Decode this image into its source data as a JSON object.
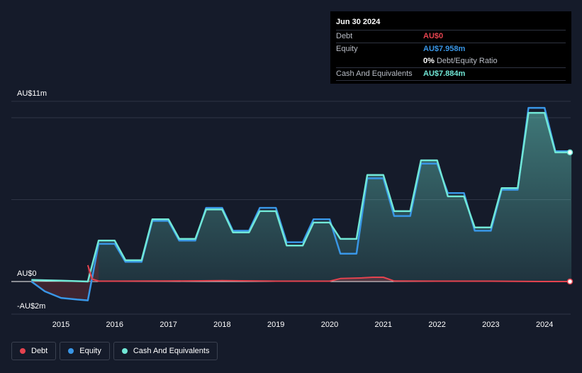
{
  "tooltip": {
    "date": "Jun 30 2024",
    "rows": {
      "debt": {
        "label": "Debt",
        "value": "AU$0"
      },
      "equity": {
        "label": "Equity",
        "value": "AU$7.958m"
      },
      "ratio": {
        "value": "0%",
        "label": "Debt/Equity Ratio"
      },
      "cash": {
        "label": "Cash And Equivalents",
        "value": "AU$7.884m"
      }
    }
  },
  "legend": {
    "debt": "Debt",
    "equity": "Equity",
    "cash": "Cash And Equivalents"
  },
  "colors": {
    "debt": "#e5434f",
    "equity": "#3996e6",
    "cash": "#71e7d6",
    "background": "#151b2a"
  },
  "chart_data": {
    "type": "line",
    "title": "",
    "xlabel": "",
    "ylabel": "",
    "y_tick_labels": [
      "AU$11m",
      "AU$0",
      "-AU$2m"
    ],
    "y_ticks": [
      11,
      0,
      -2
    ],
    "x_tick_labels": [
      "2015",
      "2016",
      "2017",
      "2018",
      "2019",
      "2020",
      "2021",
      "2022",
      "2023",
      "2024"
    ],
    "x_ticks": [
      2015,
      2016,
      2017,
      2018,
      2019,
      2020,
      2021,
      2022,
      2023,
      2024
    ],
    "xlim": [
      2014.1,
      2024.5
    ],
    "ylim": [
      -2,
      11
    ],
    "grid": true,
    "legend_position": "bottom-left",
    "series": [
      {
        "name": "Debt",
        "points": [
          [
            2015.5,
            1.0
          ],
          [
            2015.58,
            0.15
          ],
          [
            2015.7,
            0.02
          ],
          [
            2016.0,
            0.02
          ],
          [
            2017.0,
            0.03
          ],
          [
            2018.0,
            0.05
          ],
          [
            2019.0,
            0.02
          ],
          [
            2020.0,
            0.02
          ],
          [
            2020.2,
            0.18
          ],
          [
            2020.6,
            0.22
          ],
          [
            2020.8,
            0.26
          ],
          [
            2021.0,
            0.26
          ],
          [
            2021.2,
            0.03
          ],
          [
            2022.0,
            0.02
          ],
          [
            2023.0,
            0.02
          ],
          [
            2024.0,
            0.0
          ],
          [
            2024.5,
            0.0
          ]
        ]
      },
      {
        "name": "Equity",
        "points": [
          [
            2014.45,
            0.0
          ],
          [
            2014.7,
            -0.6
          ],
          [
            2015.0,
            -1.0
          ],
          [
            2015.3,
            -1.1
          ],
          [
            2015.5,
            -1.15
          ],
          [
            2015.7,
            2.3
          ],
          [
            2016.0,
            2.3
          ],
          [
            2016.2,
            1.2
          ],
          [
            2016.5,
            1.2
          ],
          [
            2016.7,
            3.7
          ],
          [
            2017.0,
            3.7
          ],
          [
            2017.2,
            2.5
          ],
          [
            2017.5,
            2.5
          ],
          [
            2017.7,
            4.5
          ],
          [
            2018.0,
            4.5
          ],
          [
            2018.2,
            3.1
          ],
          [
            2018.5,
            3.1
          ],
          [
            2018.7,
            4.5
          ],
          [
            2019.0,
            4.5
          ],
          [
            2019.2,
            2.4
          ],
          [
            2019.5,
            2.4
          ],
          [
            2019.7,
            3.8
          ],
          [
            2020.0,
            3.8
          ],
          [
            2020.2,
            1.7
          ],
          [
            2020.5,
            1.7
          ],
          [
            2020.7,
            6.3
          ],
          [
            2021.0,
            6.3
          ],
          [
            2021.2,
            4.0
          ],
          [
            2021.5,
            4.0
          ],
          [
            2021.7,
            7.2
          ],
          [
            2022.0,
            7.2
          ],
          [
            2022.2,
            5.4
          ],
          [
            2022.5,
            5.4
          ],
          [
            2022.7,
            3.1
          ],
          [
            2023.0,
            3.1
          ],
          [
            2023.2,
            5.6
          ],
          [
            2023.5,
            5.6
          ],
          [
            2023.7,
            10.6
          ],
          [
            2024.0,
            10.6
          ],
          [
            2024.2,
            7.958
          ],
          [
            2024.5,
            7.958
          ]
        ]
      },
      {
        "name": "Cash And Equivalents",
        "points": [
          [
            2014.45,
            0.1
          ],
          [
            2015.0,
            0.05
          ],
          [
            2015.5,
            0.0
          ],
          [
            2015.7,
            2.5
          ],
          [
            2016.0,
            2.5
          ],
          [
            2016.2,
            1.3
          ],
          [
            2016.5,
            1.3
          ],
          [
            2016.7,
            3.8
          ],
          [
            2017.0,
            3.8
          ],
          [
            2017.2,
            2.6
          ],
          [
            2017.5,
            2.6
          ],
          [
            2017.7,
            4.4
          ],
          [
            2018.0,
            4.4
          ],
          [
            2018.2,
            3.0
          ],
          [
            2018.5,
            3.0
          ],
          [
            2018.7,
            4.3
          ],
          [
            2019.0,
            4.3
          ],
          [
            2019.2,
            2.2
          ],
          [
            2019.5,
            2.2
          ],
          [
            2019.7,
            3.6
          ],
          [
            2020.0,
            3.6
          ],
          [
            2020.2,
            2.6
          ],
          [
            2020.5,
            2.6
          ],
          [
            2020.7,
            6.5
          ],
          [
            2021.0,
            6.5
          ],
          [
            2021.2,
            4.3
          ],
          [
            2021.5,
            4.3
          ],
          [
            2021.7,
            7.4
          ],
          [
            2022.0,
            7.4
          ],
          [
            2022.2,
            5.2
          ],
          [
            2022.5,
            5.2
          ],
          [
            2022.7,
            3.3
          ],
          [
            2023.0,
            3.3
          ],
          [
            2023.2,
            5.7
          ],
          [
            2023.5,
            5.7
          ],
          [
            2023.7,
            10.3
          ],
          [
            2024.0,
            10.3
          ],
          [
            2024.2,
            7.884
          ],
          [
            2024.5,
            7.884
          ]
        ]
      }
    ]
  }
}
